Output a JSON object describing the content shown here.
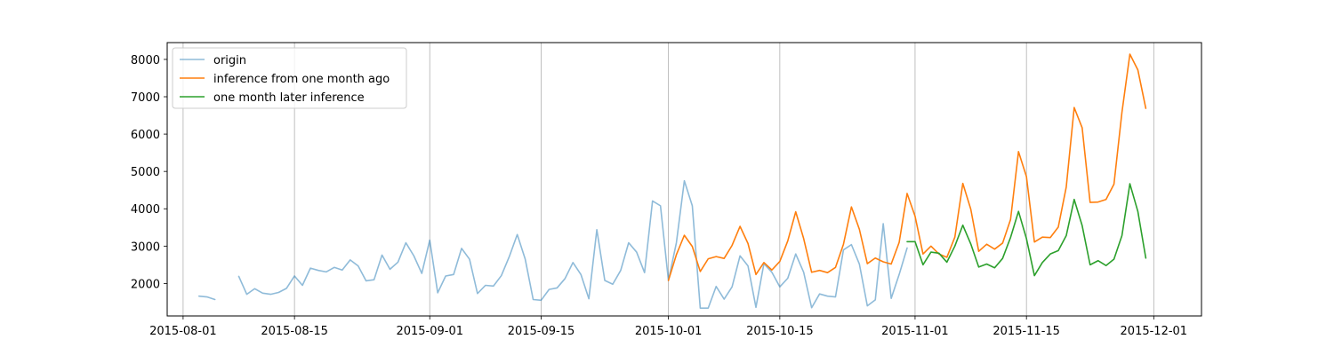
{
  "chart_data": {
    "type": "line",
    "xlim": [
      "2015-07-30",
      "2015-12-07"
    ],
    "ylim": [
      1130,
      8450
    ],
    "x_ticks": [
      "2015-08-01",
      "2015-08-15",
      "2015-09-01",
      "2015-09-15",
      "2015-10-01",
      "2015-10-15",
      "2015-11-01",
      "2015-11-15",
      "2015-12-01"
    ],
    "y_ticks": [
      2000,
      3000,
      4000,
      5000,
      6000,
      7000,
      8000
    ],
    "grid": "vertical",
    "legend_position": "top-left",
    "series": [
      {
        "name": "origin",
        "color": "#1f77b4",
        "opacity": 0.5,
        "points": [
          [
            "2015-08-03",
            1660
          ],
          [
            "2015-08-04",
            1640
          ],
          [
            "2015-08-05",
            1570
          ],
          [
            "2015-08-08",
            2190
          ],
          [
            "2015-08-09",
            1710
          ],
          [
            "2015-08-10",
            1860
          ],
          [
            "2015-08-11",
            1740
          ],
          [
            "2015-08-12",
            1710
          ],
          [
            "2015-08-13",
            1760
          ],
          [
            "2015-08-14",
            1870
          ],
          [
            "2015-08-15",
            2200
          ],
          [
            "2015-08-16",
            1950
          ],
          [
            "2015-08-17",
            2410
          ],
          [
            "2015-08-18",
            2350
          ],
          [
            "2015-08-19",
            2310
          ],
          [
            "2015-08-20",
            2430
          ],
          [
            "2015-08-21",
            2360
          ],
          [
            "2015-08-22",
            2630
          ],
          [
            "2015-08-23",
            2470
          ],
          [
            "2015-08-24",
            2070
          ],
          [
            "2015-08-25",
            2100
          ],
          [
            "2015-08-26",
            2760
          ],
          [
            "2015-08-27",
            2380
          ],
          [
            "2015-08-28",
            2570
          ],
          [
            "2015-08-29",
            3090
          ],
          [
            "2015-08-30",
            2740
          ],
          [
            "2015-08-31",
            2270
          ],
          [
            "2015-09-01",
            3160
          ],
          [
            "2015-09-02",
            1750
          ],
          [
            "2015-09-03",
            2200
          ],
          [
            "2015-09-04",
            2240
          ],
          [
            "2015-09-05",
            2940
          ],
          [
            "2015-09-06",
            2650
          ],
          [
            "2015-09-07",
            1730
          ],
          [
            "2015-09-08",
            1950
          ],
          [
            "2015-09-09",
            1930
          ],
          [
            "2015-09-10",
            2210
          ],
          [
            "2015-09-11",
            2720
          ],
          [
            "2015-09-12",
            3310
          ],
          [
            "2015-09-13",
            2650
          ],
          [
            "2015-09-14",
            1570
          ],
          [
            "2015-09-15",
            1550
          ],
          [
            "2015-09-16",
            1840
          ],
          [
            "2015-09-17",
            1880
          ],
          [
            "2015-09-18",
            2130
          ],
          [
            "2015-09-19",
            2560
          ],
          [
            "2015-09-20",
            2240
          ],
          [
            "2015-09-21",
            1590
          ],
          [
            "2015-09-22",
            3440
          ],
          [
            "2015-09-23",
            2080
          ],
          [
            "2015-09-24",
            1980
          ],
          [
            "2015-09-25",
            2350
          ],
          [
            "2015-09-26",
            3090
          ],
          [
            "2015-09-27",
            2840
          ],
          [
            "2015-09-28",
            2290
          ],
          [
            "2015-09-29",
            4210
          ],
          [
            "2015-09-30",
            4080
          ],
          [
            "2015-10-01",
            2080
          ],
          [
            "2015-10-02",
            3090
          ],
          [
            "2015-10-03",
            4750
          ],
          [
            "2015-10-04",
            4080
          ],
          [
            "2015-10-05",
            1340
          ],
          [
            "2015-10-06",
            1340
          ],
          [
            "2015-10-07",
            1920
          ],
          [
            "2015-10-08",
            1580
          ],
          [
            "2015-10-09",
            1910
          ],
          [
            "2015-10-10",
            2740
          ],
          [
            "2015-10-11",
            2470
          ],
          [
            "2015-10-12",
            1360
          ],
          [
            "2015-10-13",
            2530
          ],
          [
            "2015-10-14",
            2300
          ],
          [
            "2015-10-15",
            1910
          ],
          [
            "2015-10-16",
            2140
          ],
          [
            "2015-10-17",
            2790
          ],
          [
            "2015-10-18",
            2300
          ],
          [
            "2015-10-19",
            1350
          ],
          [
            "2015-10-20",
            1720
          ],
          [
            "2015-10-21",
            1660
          ],
          [
            "2015-10-22",
            1640
          ],
          [
            "2015-10-23",
            2900
          ],
          [
            "2015-10-24",
            3040
          ],
          [
            "2015-10-25",
            2520
          ],
          [
            "2015-10-26",
            1400
          ],
          [
            "2015-10-27",
            1560
          ],
          [
            "2015-10-28",
            3600
          ],
          [
            "2015-10-29",
            1600
          ],
          [
            "2015-10-30",
            2240
          ],
          [
            "2015-10-31",
            2950
          ]
        ]
      },
      {
        "name": "inference from one month ago",
        "color": "#ff7f0e",
        "opacity": 1,
        "points": [
          [
            "2015-10-01",
            2080
          ],
          [
            "2015-10-02",
            2770
          ],
          [
            "2015-10-03",
            3290
          ],
          [
            "2015-10-04",
            2990
          ],
          [
            "2015-10-05",
            2320
          ],
          [
            "2015-10-06",
            2660
          ],
          [
            "2015-10-07",
            2720
          ],
          [
            "2015-10-08",
            2670
          ],
          [
            "2015-10-09",
            3020
          ],
          [
            "2015-10-10",
            3530
          ],
          [
            "2015-10-11",
            3070
          ],
          [
            "2015-10-12",
            2240
          ],
          [
            "2015-10-13",
            2560
          ],
          [
            "2015-10-14",
            2360
          ],
          [
            "2015-10-15",
            2590
          ],
          [
            "2015-10-16",
            3140
          ],
          [
            "2015-10-17",
            3920
          ],
          [
            "2015-10-18",
            3200
          ],
          [
            "2015-10-19",
            2300
          ],
          [
            "2015-10-20",
            2350
          ],
          [
            "2015-10-21",
            2290
          ],
          [
            "2015-10-22",
            2430
          ],
          [
            "2015-10-23",
            3050
          ],
          [
            "2015-10-24",
            4050
          ],
          [
            "2015-10-25",
            3450
          ],
          [
            "2015-10-26",
            2530
          ],
          [
            "2015-10-27",
            2680
          ],
          [
            "2015-10-28",
            2580
          ],
          [
            "2015-10-29",
            2520
          ],
          [
            "2015-10-30",
            3100
          ],
          [
            "2015-10-31",
            4410
          ],
          [
            "2015-11-01",
            3800
          ],
          [
            "2015-11-02",
            2790
          ],
          [
            "2015-11-03",
            3000
          ],
          [
            "2015-11-04",
            2790
          ],
          [
            "2015-11-05",
            2700
          ],
          [
            "2015-11-06",
            3240
          ],
          [
            "2015-11-07",
            4680
          ],
          [
            "2015-11-08",
            3990
          ],
          [
            "2015-11-09",
            2860
          ],
          [
            "2015-11-10",
            3050
          ],
          [
            "2015-11-11",
            2920
          ],
          [
            "2015-11-12",
            3080
          ],
          [
            "2015-11-13",
            3710
          ],
          [
            "2015-11-14",
            5530
          ],
          [
            "2015-11-15",
            4860
          ],
          [
            "2015-11-16",
            3110
          ],
          [
            "2015-11-17",
            3240
          ],
          [
            "2015-11-18",
            3230
          ],
          [
            "2015-11-19",
            3510
          ],
          [
            "2015-11-20",
            4580
          ],
          [
            "2015-11-21",
            6710
          ],
          [
            "2015-11-22",
            6170
          ],
          [
            "2015-11-23",
            4170
          ],
          [
            "2015-11-24",
            4180
          ],
          [
            "2015-11-25",
            4250
          ],
          [
            "2015-11-26",
            4660
          ],
          [
            "2015-11-27",
            6580
          ],
          [
            "2015-11-28",
            8140
          ],
          [
            "2015-11-29",
            7720
          ],
          [
            "2015-11-30",
            6690
          ]
        ]
      },
      {
        "name": "one month later inference",
        "color": "#2ca02c",
        "opacity": 1,
        "points": [
          [
            "2015-10-31",
            3120
          ],
          [
            "2015-11-01",
            3120
          ],
          [
            "2015-11-02",
            2500
          ],
          [
            "2015-11-03",
            2840
          ],
          [
            "2015-11-04",
            2810
          ],
          [
            "2015-11-05",
            2570
          ],
          [
            "2015-11-06",
            3000
          ],
          [
            "2015-11-07",
            3560
          ],
          [
            "2015-11-08",
            3060
          ],
          [
            "2015-11-09",
            2440
          ],
          [
            "2015-11-10",
            2520
          ],
          [
            "2015-11-11",
            2420
          ],
          [
            "2015-11-12",
            2670
          ],
          [
            "2015-11-13",
            3230
          ],
          [
            "2015-11-14",
            3930
          ],
          [
            "2015-11-15",
            3200
          ],
          [
            "2015-11-16",
            2210
          ],
          [
            "2015-11-17",
            2560
          ],
          [
            "2015-11-18",
            2790
          ],
          [
            "2015-11-19",
            2880
          ],
          [
            "2015-11-20",
            3280
          ],
          [
            "2015-11-21",
            4250
          ],
          [
            "2015-11-22",
            3550
          ],
          [
            "2015-11-23",
            2500
          ],
          [
            "2015-11-24",
            2610
          ],
          [
            "2015-11-25",
            2480
          ],
          [
            "2015-11-26",
            2650
          ],
          [
            "2015-11-27",
            3280
          ],
          [
            "2015-11-28",
            4670
          ],
          [
            "2015-11-29",
            3930
          ],
          [
            "2015-11-30",
            2680
          ]
        ]
      }
    ]
  }
}
